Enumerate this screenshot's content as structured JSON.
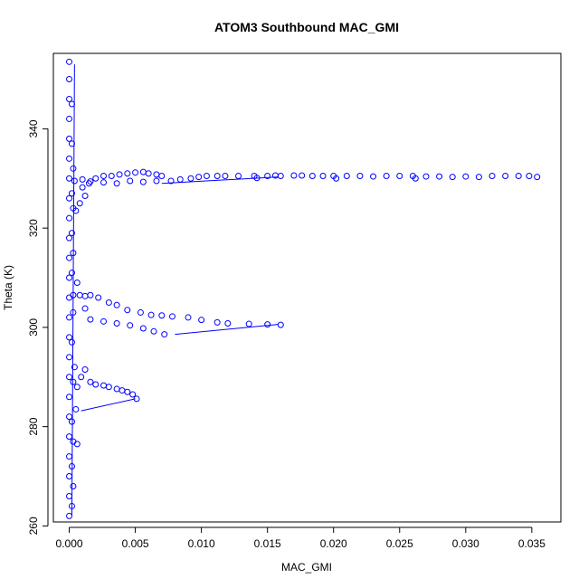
{
  "chart_data": {
    "type": "scatter",
    "title": "ATOM3 Southbound MAC_GMI",
    "xlabel": "MAC_GMI",
    "ylabel": "Theta (K)",
    "xlim": [
      -0.0012,
      0.0372
    ],
    "ylim": [
      260.8,
      355.2
    ],
    "xticks": [
      0.0,
      0.005,
      0.01,
      0.015,
      0.02,
      0.025,
      0.03,
      0.035
    ],
    "xtick_labels": [
      "0.000",
      "0.005",
      "0.010",
      "0.015",
      "0.020",
      "0.025",
      "0.030",
      "0.035"
    ],
    "yticks": [
      260,
      280,
      300,
      320,
      340
    ],
    "ytick_labels": [
      "260",
      "280",
      "300",
      "320",
      "340"
    ],
    "marker": "open-circle",
    "color": "#0000ff",
    "grid": false,
    "legend": "none",
    "series": [
      {
        "values": [
          [
            0.0,
            262
          ],
          [
            0.0,
            266
          ],
          [
            0.0,
            270
          ],
          [
            0.0,
            274
          ],
          [
            0.0,
            278
          ],
          [
            0.0,
            282
          ],
          [
            0.0,
            286
          ],
          [
            0.0,
            290
          ],
          [
            0.0,
            294
          ],
          [
            0.0,
            298
          ],
          [
            0.0,
            302
          ],
          [
            0.0,
            306
          ],
          [
            0.0,
            310
          ],
          [
            0.0,
            314
          ],
          [
            0.0,
            318
          ],
          [
            0.0,
            322
          ],
          [
            0.0,
            326
          ],
          [
            0.0,
            330
          ],
          [
            0.0,
            334
          ],
          [
            0.0,
            338
          ],
          [
            0.0,
            342
          ],
          [
            0.0,
            346
          ],
          [
            0.0,
            350
          ],
          [
            0.0,
            353.5
          ],
          [
            0.0002,
            264
          ],
          [
            0.0002,
            272
          ],
          [
            0.0002,
            281
          ],
          [
            0.0002,
            297
          ],
          [
            0.0002,
            311
          ],
          [
            0.0002,
            319
          ],
          [
            0.0002,
            327
          ],
          [
            0.0002,
            337
          ],
          [
            0.0002,
            345
          ],
          [
            0.0003,
            268
          ],
          [
            0.0003,
            277
          ],
          [
            0.0003,
            289
          ],
          [
            0.0004,
            292
          ],
          [
            0.0003,
            303
          ],
          [
            0.0003,
            315
          ],
          [
            0.0003,
            324
          ],
          [
            0.0003,
            332
          ],
          [
            0.0006,
            276.5
          ],
          [
            0.0005,
            283.5
          ],
          [
            0.0006,
            288
          ],
          [
            0.0009,
            290
          ],
          [
            0.0012,
            291.5
          ],
          [
            0.0016,
            289
          ],
          [
            0.002,
            288.5
          ],
          [
            0.0026,
            288.3
          ],
          [
            0.003,
            288
          ],
          [
            0.0036,
            287.6
          ],
          [
            0.004,
            287.3
          ],
          [
            0.0044,
            287
          ],
          [
            0.0048,
            286.5
          ],
          [
            0.0051,
            285.6
          ],
          [
            0.0003,
            306.5
          ],
          [
            0.0008,
            306.5
          ],
          [
            0.0012,
            306.3
          ],
          [
            0.0016,
            306.5
          ],
          [
            0.0022,
            306
          ],
          [
            0.003,
            305
          ],
          [
            0.0036,
            304.5
          ],
          [
            0.0044,
            303.5
          ],
          [
            0.0054,
            303
          ],
          [
            0.0062,
            302.5
          ],
          [
            0.007,
            302.4
          ],
          [
            0.0078,
            302.2
          ],
          [
            0.009,
            302
          ],
          [
            0.01,
            301.5
          ],
          [
            0.0112,
            301
          ],
          [
            0.012,
            300.8
          ],
          [
            0.0136,
            300.7
          ],
          [
            0.015,
            300.6
          ],
          [
            0.016,
            300.5
          ],
          [
            0.0016,
            301.6
          ],
          [
            0.0026,
            301.2
          ],
          [
            0.0036,
            300.8
          ],
          [
            0.0046,
            300.4
          ],
          [
            0.0056,
            299.8
          ],
          [
            0.0064,
            299.2
          ],
          [
            0.0072,
            298.6
          ],
          [
            0.0006,
            309
          ],
          [
            0.0012,
            303.8
          ],
          [
            0.0004,
            329.5
          ],
          [
            0.001,
            329.8
          ],
          [
            0.0016,
            329.4
          ],
          [
            0.002,
            330
          ],
          [
            0.0026,
            330.5
          ],
          [
            0.0032,
            330.5
          ],
          [
            0.0038,
            330.8
          ],
          [
            0.0044,
            331
          ],
          [
            0.005,
            331.2
          ],
          [
            0.0056,
            331.3
          ],
          [
            0.006,
            331
          ],
          [
            0.0066,
            330.8
          ],
          [
            0.007,
            330.5
          ],
          [
            0.0015,
            329
          ],
          [
            0.0026,
            329.2
          ],
          [
            0.0036,
            329
          ],
          [
            0.0046,
            329.5
          ],
          [
            0.0056,
            329.3
          ],
          [
            0.0066,
            329.5
          ],
          [
            0.001,
            328.2
          ],
          [
            0.0012,
            326.5
          ],
          [
            0.0008,
            325
          ],
          [
            0.0005,
            323.5
          ],
          [
            0.0077,
            329.5
          ],
          [
            0.0084,
            329.8
          ],
          [
            0.0092,
            330
          ],
          [
            0.0098,
            330.3
          ],
          [
            0.0104,
            330.5
          ],
          [
            0.0112,
            330.5
          ],
          [
            0.0118,
            330.5
          ],
          [
            0.0128,
            330.5
          ],
          [
            0.014,
            330.5
          ],
          [
            0.015,
            330.5
          ],
          [
            0.0156,
            330.6
          ],
          [
            0.016,
            330.5
          ],
          [
            0.017,
            330.6
          ],
          [
            0.0176,
            330.6
          ],
          [
            0.0184,
            330.5
          ],
          [
            0.0192,
            330.5
          ],
          [
            0.02,
            330.5
          ],
          [
            0.021,
            330.5
          ],
          [
            0.022,
            330.5
          ],
          [
            0.023,
            330.4
          ],
          [
            0.024,
            330.5
          ],
          [
            0.025,
            330.5
          ],
          [
            0.026,
            330.5
          ],
          [
            0.027,
            330.4
          ],
          [
            0.028,
            330.4
          ],
          [
            0.029,
            330.3
          ],
          [
            0.03,
            330.4
          ],
          [
            0.031,
            330.3
          ],
          [
            0.032,
            330.5
          ],
          [
            0.033,
            330.5
          ],
          [
            0.034,
            330.5
          ],
          [
            0.0348,
            330.5
          ],
          [
            0.0354,
            330.3
          ],
          [
            0.0142,
            330.1
          ],
          [
            0.0202,
            330.0
          ],
          [
            0.0262,
            330.0
          ]
        ]
      }
    ],
    "connector_lines": [
      [
        [
          0.0009,
          283.2
        ],
        [
          0.005,
          285.6
        ]
      ],
      [
        [
          0.008,
          298.6
        ],
        [
          0.0158,
          300.6
        ]
      ],
      [
        [
          0.007,
          329.0
        ],
        [
          0.0158,
          330.3
        ]
      ],
      [
        [
          0.0002,
          262
        ],
        [
          0.0004,
          353
        ]
      ]
    ]
  }
}
